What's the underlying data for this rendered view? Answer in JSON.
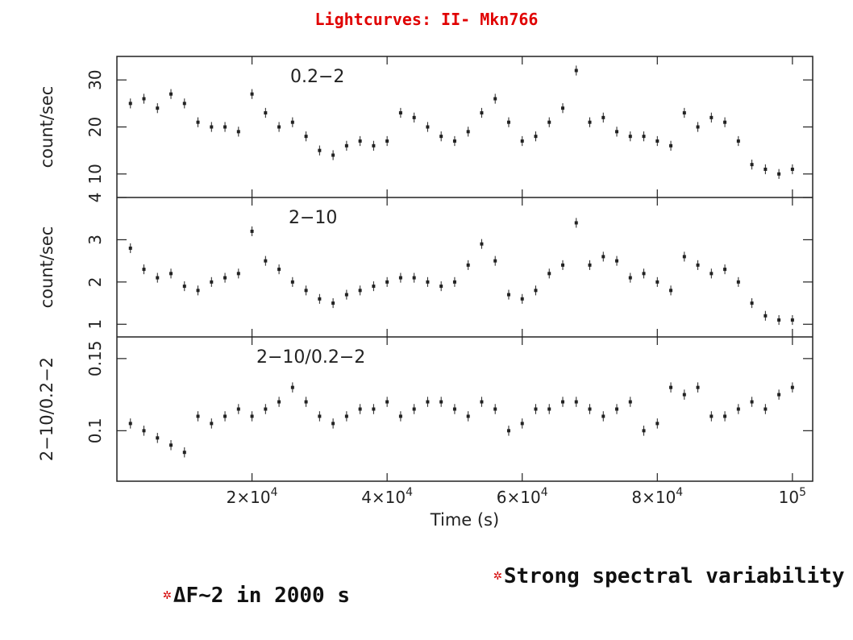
{
  "title": "Lightcurves: II- Mkn766",
  "bullets": [
    {
      "icon": "red-star-icon",
      "text": "ΔF~2 in 2000 s"
    },
    {
      "icon": "red-star-icon",
      "text": "Strong spectral variability"
    }
  ],
  "colors": {
    "title": "#e00000",
    "bullet_star": "#d40000",
    "ink": "#222222"
  },
  "chart_data": [
    {
      "type": "scatter",
      "panel_label": "0.2−2",
      "ylabel": "count/sec",
      "ylim": [
        5,
        35
      ],
      "yticks": [
        10,
        20,
        30
      ],
      "ytick_labels": [
        "10",
        "20",
        "30"
      ],
      "x": [
        2000,
        4000,
        6000,
        8000,
        10000,
        12000,
        14000,
        16000,
        18000,
        20000,
        22000,
        24000,
        26000,
        28000,
        30000,
        32000,
        34000,
        36000,
        38000,
        40000,
        42000,
        44000,
        46000,
        48000,
        50000,
        52000,
        54000,
        56000,
        58000,
        60000,
        62000,
        64000,
        66000,
        68000,
        70000,
        72000,
        74000,
        76000,
        78000,
        80000,
        82000,
        84000,
        86000,
        88000,
        90000,
        92000,
        94000,
        96000,
        98000,
        100000
      ],
      "values": [
        25,
        26,
        24,
        27,
        25,
        21,
        20,
        20,
        19,
        27,
        23,
        20,
        21,
        18,
        15,
        14,
        16,
        17,
        16,
        17,
        23,
        22,
        20,
        18,
        17,
        19,
        23,
        26,
        21,
        17,
        18,
        21,
        24,
        32,
        21,
        22,
        19,
        18,
        18,
        17,
        16,
        23,
        20,
        22,
        21,
        17,
        12,
        11,
        10,
        11
      ]
    },
    {
      "type": "scatter",
      "panel_label": "2−10",
      "ylabel": "count/sec",
      "ylim": [
        0.7,
        4
      ],
      "yticks": [
        1,
        2,
        3,
        4
      ],
      "ytick_labels": [
        "1",
        "2",
        "3",
        "4"
      ],
      "x": [
        2000,
        4000,
        6000,
        8000,
        10000,
        12000,
        14000,
        16000,
        18000,
        20000,
        22000,
        24000,
        26000,
        28000,
        30000,
        32000,
        34000,
        36000,
        38000,
        40000,
        42000,
        44000,
        46000,
        48000,
        50000,
        52000,
        54000,
        56000,
        58000,
        60000,
        62000,
        64000,
        66000,
        68000,
        70000,
        72000,
        74000,
        76000,
        78000,
        80000,
        82000,
        84000,
        86000,
        88000,
        90000,
        92000,
        94000,
        96000,
        98000,
        100000
      ],
      "values": [
        2.8,
        2.3,
        2.1,
        2.2,
        1.9,
        1.8,
        2.0,
        2.1,
        2.2,
        3.2,
        2.5,
        2.3,
        2.0,
        1.8,
        1.6,
        1.5,
        1.7,
        1.8,
        1.9,
        2.0,
        2.1,
        2.1,
        2.0,
        1.9,
        2.0,
        2.4,
        2.9,
        2.5,
        1.7,
        1.6,
        1.8,
        2.2,
        2.4,
        3.4,
        2.4,
        2.6,
        2.5,
        2.1,
        2.2,
        2.0,
        1.8,
        2.6,
        2.4,
        2.2,
        2.3,
        2.0,
        1.5,
        1.2,
        1.1,
        1.1
      ]
    },
    {
      "type": "scatter",
      "panel_label": "2−10/0.2−2",
      "ylabel": "2−10/0.2−2",
      "ylim": [
        0.065,
        0.165
      ],
      "yticks": [
        0.1,
        0.15
      ],
      "ytick_labels": [
        "0.1",
        "0.15"
      ],
      "xlabel": "Time (s)",
      "xlim": [
        0,
        103000
      ],
      "xticks": [
        20000,
        40000,
        60000,
        80000,
        100000
      ],
      "xtick_labels": [
        {
          "mantissa": "2×10",
          "exp": "4"
        },
        {
          "mantissa": "4×10",
          "exp": "4"
        },
        {
          "mantissa": "6×10",
          "exp": "4"
        },
        {
          "mantissa": "8×10",
          "exp": "4"
        },
        {
          "mantissa": "10",
          "exp": "5"
        }
      ],
      "x": [
        2000,
        4000,
        6000,
        8000,
        10000,
        12000,
        14000,
        16000,
        18000,
        20000,
        22000,
        24000,
        26000,
        28000,
        30000,
        32000,
        34000,
        36000,
        38000,
        40000,
        42000,
        44000,
        46000,
        48000,
        50000,
        52000,
        54000,
        56000,
        58000,
        60000,
        62000,
        64000,
        66000,
        68000,
        70000,
        72000,
        74000,
        76000,
        78000,
        80000,
        82000,
        84000,
        86000,
        88000,
        90000,
        92000,
        94000,
        96000,
        98000,
        100000
      ],
      "values": [
        0.105,
        0.1,
        0.095,
        0.09,
        0.085,
        0.11,
        0.105,
        0.11,
        0.115,
        0.11,
        0.115,
        0.12,
        0.13,
        0.12,
        0.11,
        0.105,
        0.11,
        0.115,
        0.115,
        0.12,
        0.11,
        0.115,
        0.12,
        0.12,
        0.115,
        0.11,
        0.12,
        0.115,
        0.1,
        0.105,
        0.115,
        0.115,
        0.12,
        0.12,
        0.115,
        0.11,
        0.115,
        0.12,
        0.1,
        0.105,
        0.13,
        0.125,
        0.13,
        0.11,
        0.11,
        0.115,
        0.12,
        0.115,
        0.125,
        0.13
      ]
    }
  ]
}
